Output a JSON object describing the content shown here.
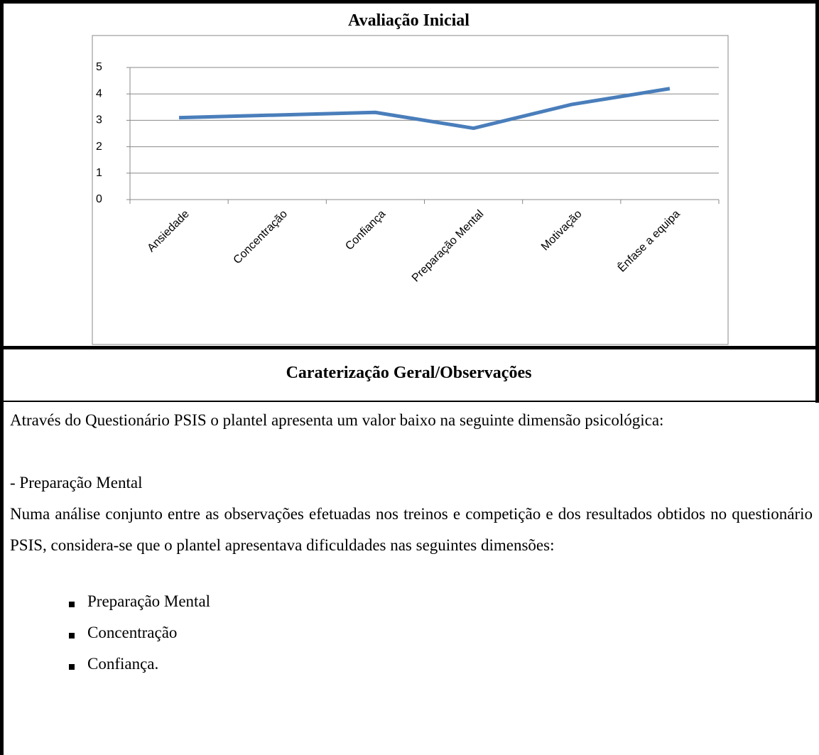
{
  "chart_data": {
    "type": "line",
    "title": "Avaliação Inicial",
    "categories": [
      "Ansiedade",
      "Concentração",
      "Confiança",
      "Preparação Mental",
      "Motivação",
      "Ênfase a equipa"
    ],
    "values": [
      3.1,
      3.2,
      3.3,
      2.7,
      3.6,
      4.2
    ],
    "color": "#4a7ebb",
    "ylim": [
      0,
      5
    ],
    "yticks": [
      0,
      1,
      2,
      3,
      4,
      5
    ],
    "grid": true
  },
  "section": {
    "heading": "Caraterização Geral/Observações",
    "paragraphs": [
      "Através do Questionário PSIS o plantel apresenta um valor baixo na seguinte dimensão psicológica:",
      "- Preparação Mental",
      "Numa análise conjunto entre as observações efetuadas nos treinos e competição e dos resultados obtidos no questionário PSIS, considera-se que o plantel apresentava dificuldades nas seguintes dimensões:"
    ],
    "list": [
      "Preparação Mental",
      "Concentração",
      "Confiança."
    ]
  }
}
